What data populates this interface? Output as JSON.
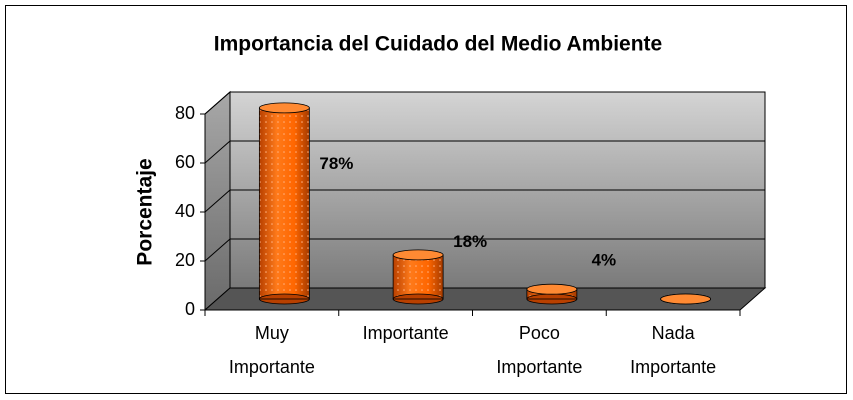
{
  "chart_data": {
    "type": "bar3d",
    "title": "Importancia del Cuidado del Medio Ambiente",
    "y_label": "Porcentaje",
    "categories": [
      "Muy Importante",
      "Importante",
      "Poco Importante",
      "Nada Importante"
    ],
    "values": [
      78,
      18,
      4,
      0
    ],
    "value_labels": [
      "78%",
      "18%",
      "4%",
      null
    ],
    "color": "#ff6600",
    "ylim": [
      0,
      80
    ],
    "yticks": [
      0,
      20,
      40,
      60,
      80
    ],
    "grid": true
  }
}
